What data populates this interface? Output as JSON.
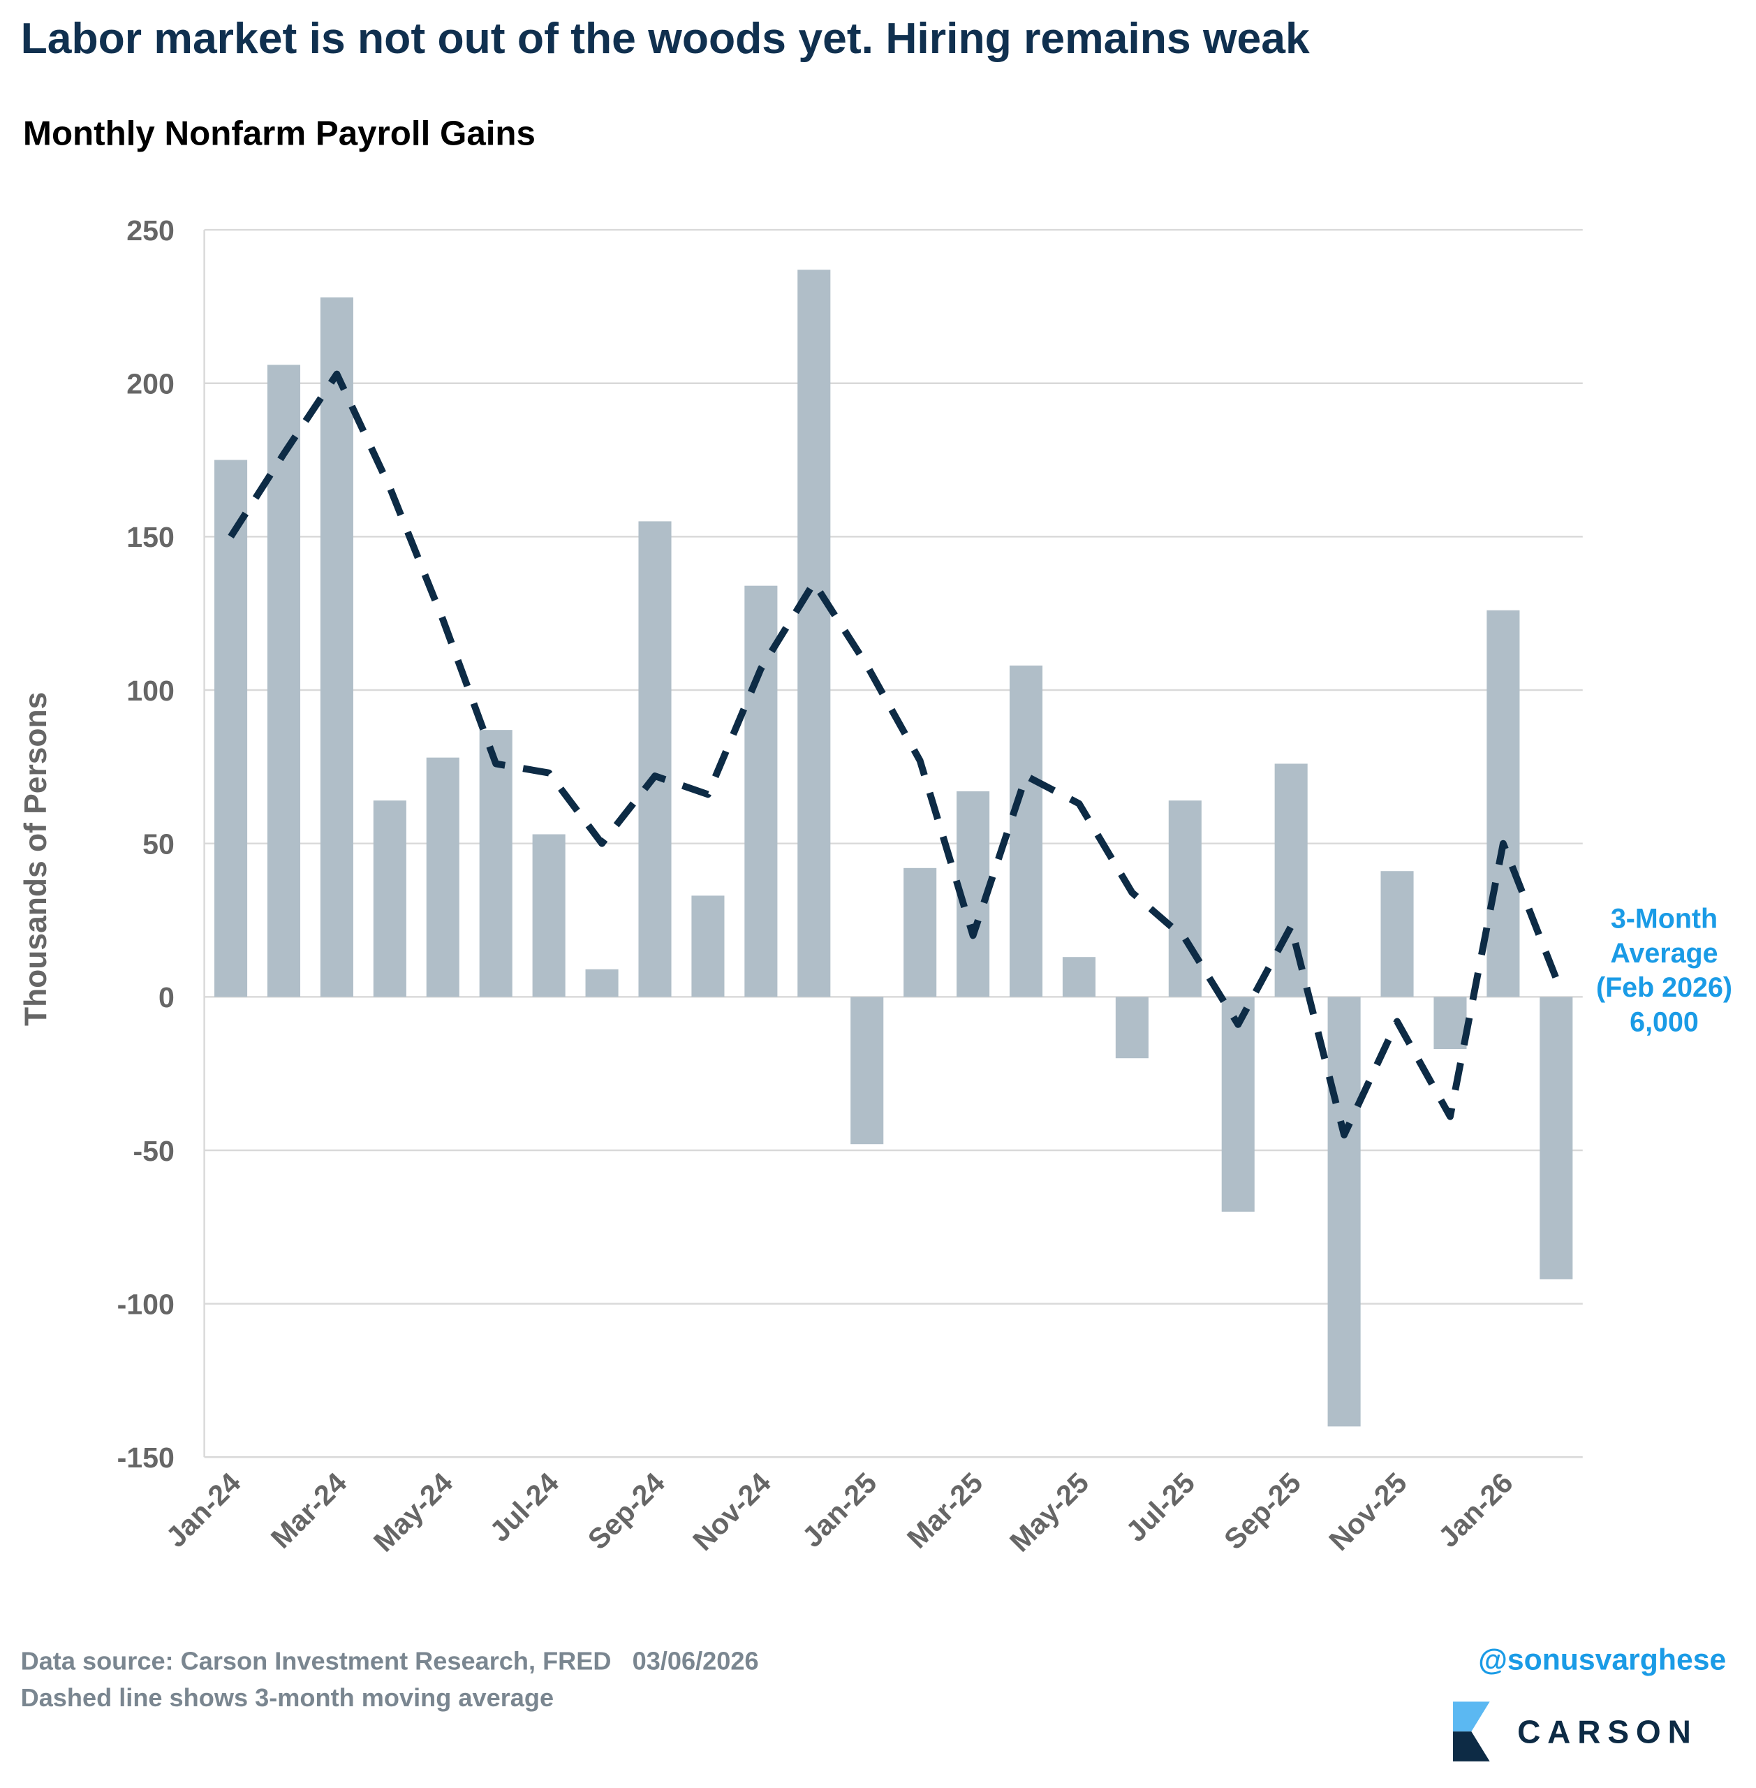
{
  "chart_data": {
    "type": "bar",
    "title": "Labor market is not out of the woods yet. Hiring remains weak",
    "subtitle": "Monthly Nonfarm Payroll Gains",
    "y_label": "Thousands of Persons",
    "categories": [
      "Jan-24",
      null,
      "Mar-24",
      null,
      "May-24",
      null,
      "Jul-24",
      null,
      "Sep-24",
      null,
      "Nov-24",
      null,
      "Jan-25",
      null,
      "Mar-25",
      null,
      "May-25",
      null,
      "Jul-25",
      null,
      "Sep-25",
      null,
      "Nov-25",
      null,
      "Jan-26",
      null
    ],
    "series": [
      {
        "type": "bar",
        "color": "#b0bec8",
        "values": [
          175,
          206,
          228,
          64,
          78,
          87,
          53,
          9,
          155,
          33,
          134,
          237,
          -48,
          42,
          67,
          108,
          13,
          -20,
          64,
          -70,
          76,
          -140,
          41,
          -17,
          126,
          -92
        ]
      },
      {
        "type": "line",
        "color": "#0d2b45",
        "dashed": true,
        "values": [
          150,
          177,
          203,
          166,
          123,
          76,
          73,
          50,
          72,
          66,
          107,
          135,
          108,
          77,
          20,
          72,
          63,
          34,
          19,
          -9,
          23,
          -45,
          -8,
          -39,
          50,
          6
        ]
      }
    ],
    "ylim": [
      -150,
      250
    ],
    "yticks": [
      -150,
      -100,
      -50,
      0,
      50,
      100,
      150,
      200,
      250
    ],
    "grid": true,
    "annotation": {
      "lines": [
        "3-Month",
        "Average",
        "(Feb 2026)",
        "6,000"
      ],
      "color": "#1a9be6"
    },
    "footnotes": [
      "Data source: Carson Investment Research, FRED   03/06/2026",
      "Dashed line shows 3-month moving average"
    ],
    "handle": "@sonusvarghese",
    "brand": "CARSON"
  }
}
